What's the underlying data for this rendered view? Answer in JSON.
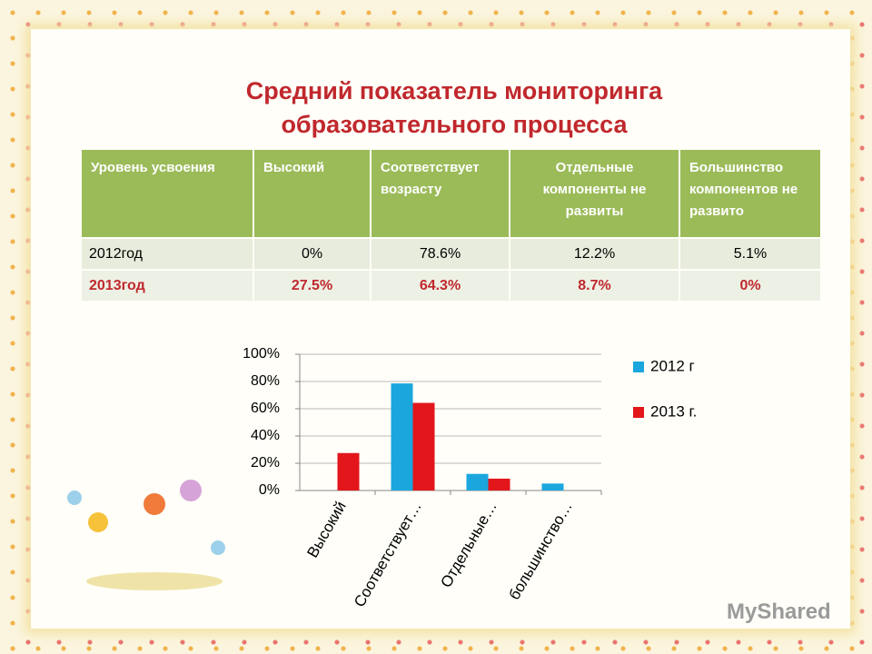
{
  "title": "Средний  показатель мониторинга образовательного процесса",
  "table": {
    "header": [
      "Уровень усвоения",
      "Высокий",
      "Соответствует возрасту",
      "Отдельные компоненты не развиты",
      "Большинство компонентов не развито"
    ],
    "rows": [
      [
        "2012год",
        "0%",
        "78.6%",
        "12.2%",
        "5.1%"
      ],
      [
        "2013год",
        "27.5%",
        "64.3%",
        "8.7%",
        "0%"
      ]
    ]
  },
  "chart_data": {
    "type": "bar",
    "categories": [
      "Высокий",
      "Соответствует…",
      "Отдельные…",
      "большинство…"
    ],
    "series": [
      {
        "name": "2012 г",
        "color": "#1ba7de",
        "values": [
          0,
          78.6,
          12.2,
          5.1
        ]
      },
      {
        "name": "2013 г.",
        "color": "#e3161c",
        "values": [
          27.5,
          64.3,
          8.7,
          0
        ]
      }
    ],
    "ylim": [
      0,
      100
    ],
    "yticks": [
      {
        "value": 0,
        "label": "0%"
      },
      {
        "value": 20,
        "label": "20%"
      },
      {
        "value": 40,
        "label": "40%"
      },
      {
        "value": 60,
        "label": "60%"
      },
      {
        "value": 80,
        "label": "80%"
      },
      {
        "value": 100,
        "label": "100%"
      }
    ],
    "grid": true,
    "legend": "right"
  },
  "watermark": "MyShared"
}
